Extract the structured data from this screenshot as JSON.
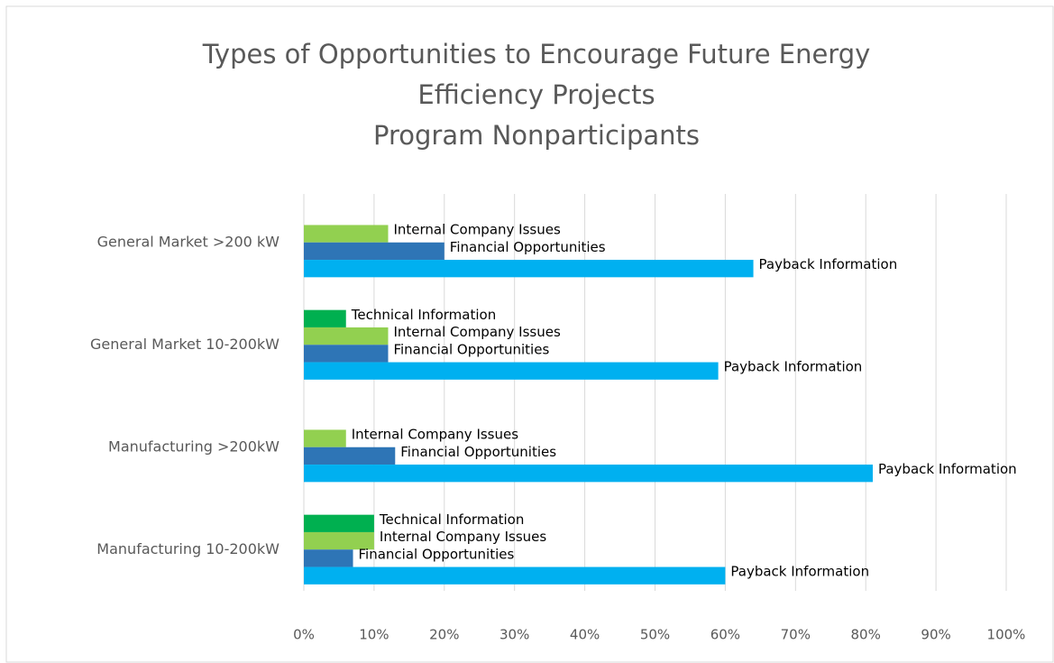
{
  "chart_data": {
    "type": "bar",
    "orientation": "horizontal",
    "title": [
      "Types of Opportunities to Encourage Future Energy",
      "Efficiency Projects",
      "Program Nonparticipants"
    ],
    "categories": [
      "General Market >200 kW",
      "General Market 10-200kW",
      "Manufacturing >200kW",
      "Manufacturing 10-200kW"
    ],
    "series": [
      {
        "name": "Technical Information",
        "color": "#00b050",
        "values": [
          null,
          6,
          null,
          10
        ]
      },
      {
        "name": "Internal Company Issues",
        "color": "#92d050",
        "values": [
          12,
          12,
          6,
          10
        ]
      },
      {
        "name": "Financial Opportunities",
        "color": "#2e75b6",
        "values": [
          20,
          12,
          13,
          7
        ]
      },
      {
        "name": "Payback Information",
        "color": "#00b0f0",
        "values": [
          64,
          59,
          81,
          60
        ]
      }
    ],
    "xlim": [
      0,
      100
    ],
    "xticks": [
      {
        "value": 0,
        "label": "0%"
      },
      {
        "value": 10,
        "label": "10%"
      },
      {
        "value": 20,
        "label": "20%"
      },
      {
        "value": 30,
        "label": "30%"
      },
      {
        "value": 40,
        "label": "40%"
      },
      {
        "value": 50,
        "label": "50%"
      },
      {
        "value": 60,
        "label": "60%"
      },
      {
        "value": 70,
        "label": "70%"
      },
      {
        "value": 80,
        "label": "80%"
      },
      {
        "value": 90,
        "label": "90%"
      },
      {
        "value": 100,
        "label": "100%"
      }
    ],
    "grid": true
  }
}
